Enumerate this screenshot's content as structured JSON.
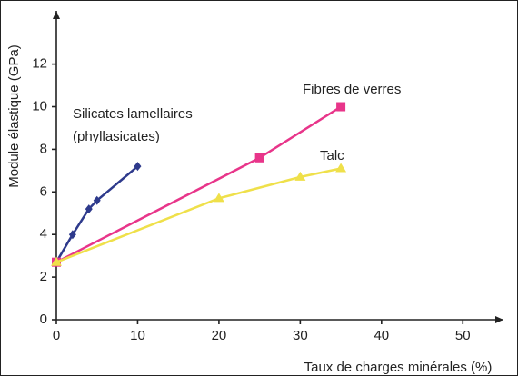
{
  "chart_data": {
    "type": "line",
    "y_label": "Module élastique (GPa)",
    "x_label": "Taux de charges minérales (%)",
    "xlim": [
      0,
      55
    ],
    "ylim": [
      0,
      14.5
    ],
    "xticks": [
      0,
      10,
      20,
      30,
      40,
      50
    ],
    "yticks": [
      0,
      2,
      4,
      6,
      8,
      10,
      12
    ],
    "series": [
      {
        "color": "#2e3a8c",
        "marker": "diamond",
        "x": [
          0,
          2,
          4,
          5,
          10
        ],
        "values": [
          2.7,
          4,
          5.2,
          5.6,
          7.2
        ]
      },
      {
        "color": "#e8358a",
        "marker": "square",
        "x": [
          0,
          25,
          35
        ],
        "values": [
          2.7,
          7.6,
          10
        ]
      },
      {
        "color": "#efe04a",
        "marker": "triangle",
        "x": [
          0,
          20,
          30,
          35
        ],
        "values": [
          2.7,
          5.7,
          6.7,
          7.1
        ]
      }
    ],
    "annotations": [
      "Silicates lamellaires",
      "(phyllasicates)",
      "Fibres de verres",
      "Talc"
    ]
  }
}
